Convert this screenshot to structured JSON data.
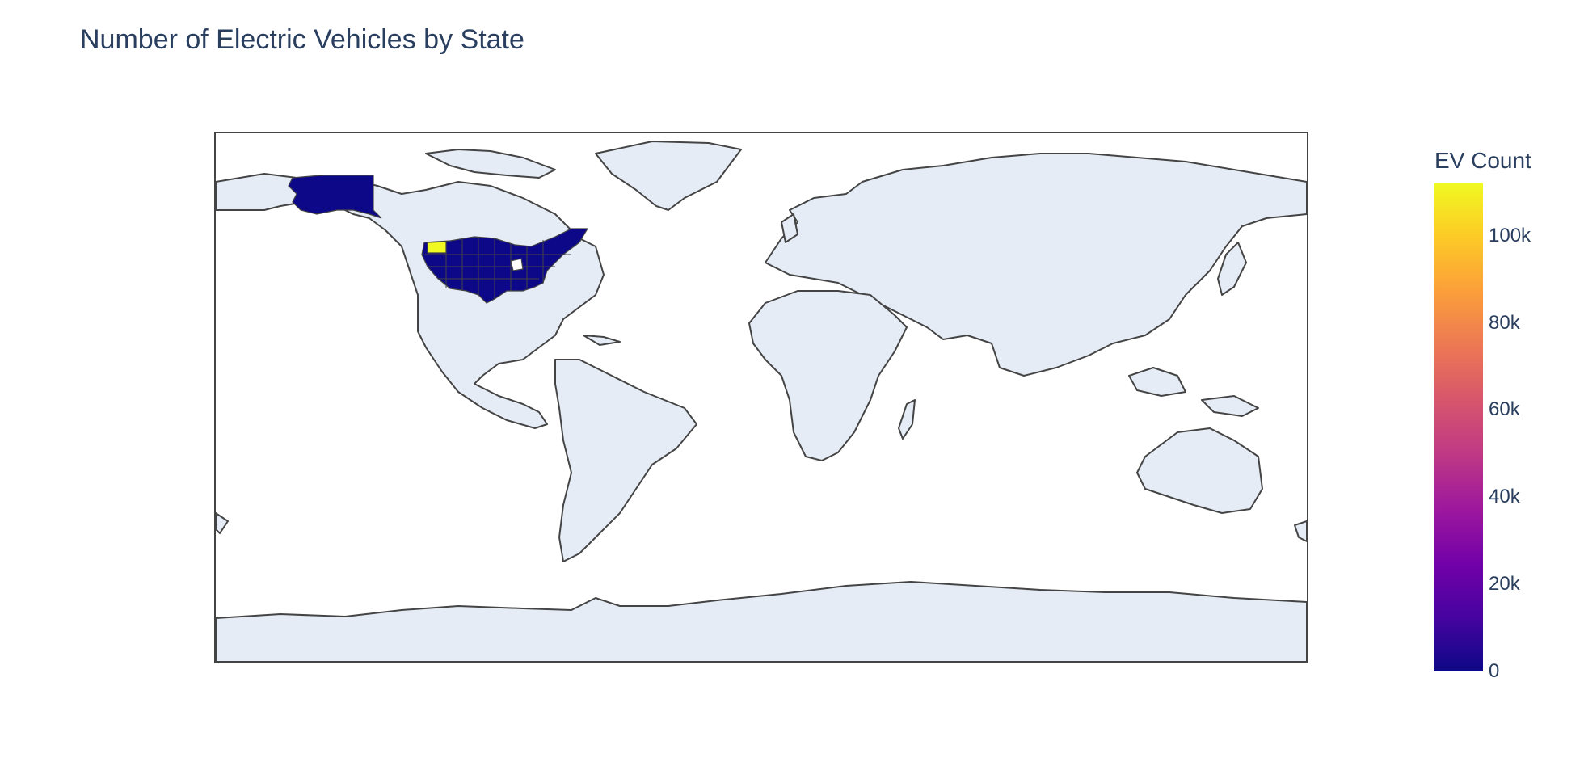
{
  "title": "Number of Electric Vehicles by State",
  "colorbar": {
    "title": "EV Count",
    "ticks": [
      {
        "label": "100k",
        "value": 100000
      },
      {
        "label": "80k",
        "value": 80000
      },
      {
        "label": "60k",
        "value": 60000
      },
      {
        "label": "40k",
        "value": 40000
      },
      {
        "label": "20k",
        "value": 20000
      },
      {
        "label": "0",
        "value": 0
      }
    ],
    "range": [
      0,
      112000
    ],
    "colorscale": [
      "#0d0887",
      "#46039f",
      "#7201a8",
      "#9c179e",
      "#bd3786",
      "#d8576b",
      "#ed7953",
      "#fb9f3a",
      "#fdca26",
      "#f0f921"
    ]
  },
  "map": {
    "projection": "equirectangular",
    "land_color": "#e5ecf6",
    "ocean_color": "#ffffff",
    "coastline_color": "#444444",
    "highlight_state": "Washington",
    "highlight_color": "#f0f921",
    "state_fill_color": "#0d0887"
  }
}
